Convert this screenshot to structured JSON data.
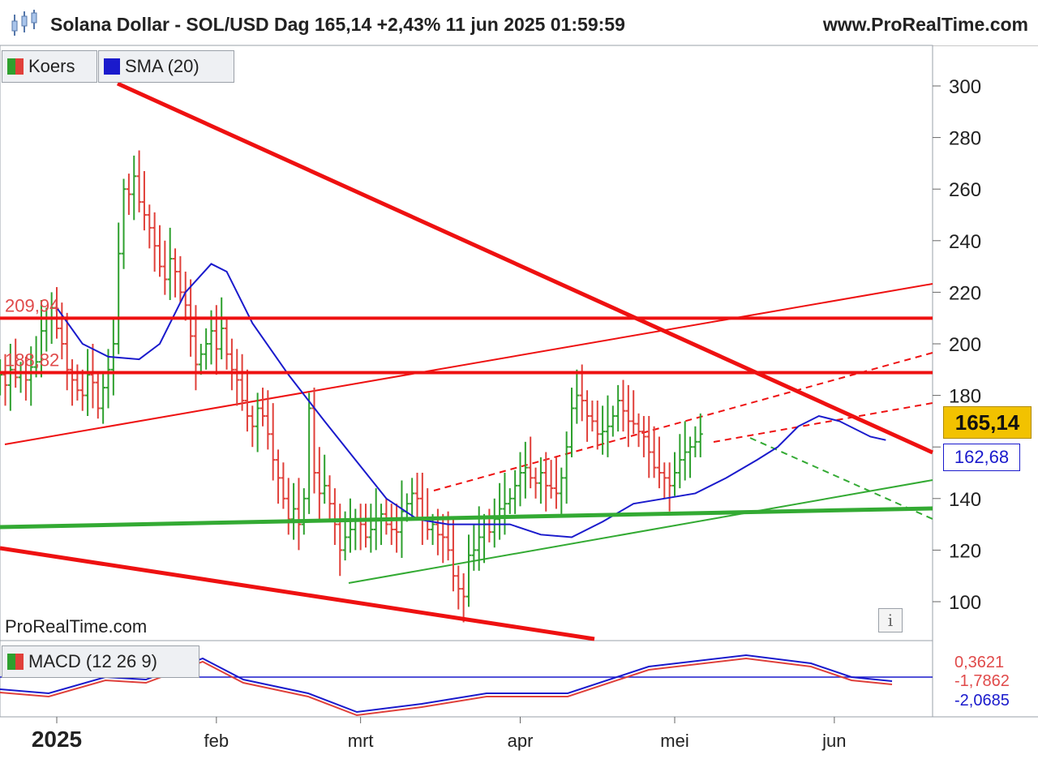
{
  "header": {
    "title": "Solana Dollar - SOL/USD Dag 165,14 +2,43% 11 jun 2025 01:59:59",
    "site": "www.ProRealTime.com"
  },
  "legend": {
    "price_label": "Koers",
    "sma_label": "SMA (20)",
    "macd_label": "MACD (12 26 9)",
    "watermark": "ProRealTime.com"
  },
  "colors": {
    "up": "#2ea02e",
    "down": "#e0403a",
    "sma": "#1a1acc",
    "resistance": "#ee1111",
    "support": "#33aa33",
    "last_price_bg": "#f2c200"
  },
  "chart_data": {
    "type": "candlestick",
    "title": "Solana Dollar - SOL/USD Dag",
    "last_price": "165,14",
    "sma_value": "162,68",
    "change": "+2,43%",
    "ylim": [
      90,
      315
    ],
    "y_ticks": [
      100,
      120,
      140,
      160,
      180,
      200,
      220,
      240,
      260,
      280,
      300
    ],
    "y_tick_labels": [
      "100",
      "120",
      "140",
      "",
      "180",
      "200",
      "220",
      "240",
      "260",
      "280",
      "300"
    ],
    "x_labels": [
      {
        "label": "2025",
        "day": 0
      },
      {
        "label": "feb",
        "day": 31
      },
      {
        "label": "mrt",
        "day": 59
      },
      {
        "label": "apr",
        "day": 90
      },
      {
        "label": "mei",
        "day": 120
      },
      {
        "label": "jun",
        "day": 151
      }
    ],
    "price_levels": [
      {
        "label": "209,94",
        "value": 209.94
      },
      {
        "label": "188,82",
        "value": 188.82
      }
    ],
    "price_ohlc_hint": "daily bars Dec 2024 - 11 jun 2025",
    "closes": [
      186,
      188,
      184,
      190,
      187,
      189,
      186,
      191,
      193,
      205,
      210,
      214,
      206,
      200,
      190,
      186,
      182,
      180,
      188,
      185,
      175,
      183,
      190,
      200,
      235,
      260,
      258,
      265,
      255,
      250,
      245,
      238,
      230,
      225,
      233,
      228,
      220,
      215,
      203,
      192,
      196,
      200,
      205,
      198,
      206,
      196,
      190,
      186,
      178,
      172,
      168,
      175,
      172,
      165,
      155,
      148,
      140,
      132,
      136,
      130,
      140,
      175,
      150,
      142,
      145,
      138,
      130,
      120,
      125,
      128,
      132,
      130,
      125,
      128,
      132,
      134,
      130,
      128,
      127,
      135,
      138,
      142,
      140,
      132,
      128,
      130,
      126,
      125,
      120,
      110,
      105,
      102,
      118,
      120,
      125,
      130,
      127,
      132,
      136,
      138,
      140,
      145,
      150,
      152,
      148,
      146,
      150,
      145,
      144,
      142,
      148,
      160,
      175,
      180,
      178,
      172,
      170,
      165,
      166,
      168,
      172,
      178,
      174,
      170,
      169,
      166,
      164,
      158,
      152,
      150,
      148,
      145,
      150,
      155,
      158,
      160,
      162,
      165
    ],
    "sma_points": [
      [
        0,
        214
      ],
      [
        5,
        200
      ],
      [
        10,
        195
      ],
      [
        16,
        194
      ],
      [
        20,
        200
      ],
      [
        25,
        220
      ],
      [
        30,
        231
      ],
      [
        33,
        228
      ],
      [
        38,
        208
      ],
      [
        45,
        188
      ],
      [
        52,
        170
      ],
      [
        58,
        155
      ],
      [
        64,
        140
      ],
      [
        70,
        132
      ],
      [
        76,
        130
      ],
      [
        82,
        130
      ],
      [
        88,
        130
      ],
      [
        94,
        126
      ],
      [
        100,
        125
      ],
      [
        106,
        131
      ],
      [
        112,
        138
      ],
      [
        118,
        140
      ],
      [
        124,
        142
      ],
      [
        130,
        148
      ],
      [
        136,
        155
      ],
      [
        140,
        160
      ],
      [
        144,
        168
      ],
      [
        148,
        172
      ],
      [
        152,
        170
      ],
      [
        158,
        164
      ],
      [
        161,
        162.68
      ]
    ],
    "macd_ticks": [
      "0,3621",
      "-1,7862",
      "-2,0685"
    ]
  }
}
